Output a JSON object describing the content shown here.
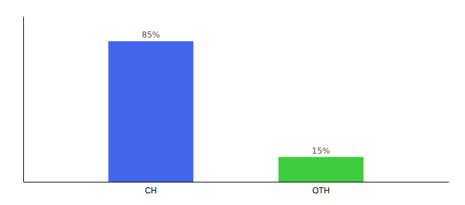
{
  "chart_data": {
    "type": "bar",
    "categories": [
      "CH",
      "OTH"
    ],
    "values": [
      85,
      15
    ],
    "value_labels": [
      "85%",
      "15%"
    ],
    "colors": [
      "#4466ee",
      "#3dcc3d"
    ],
    "ylim": [
      0,
      100
    ],
    "data_labels": true,
    "tick_labels": "x"
  }
}
